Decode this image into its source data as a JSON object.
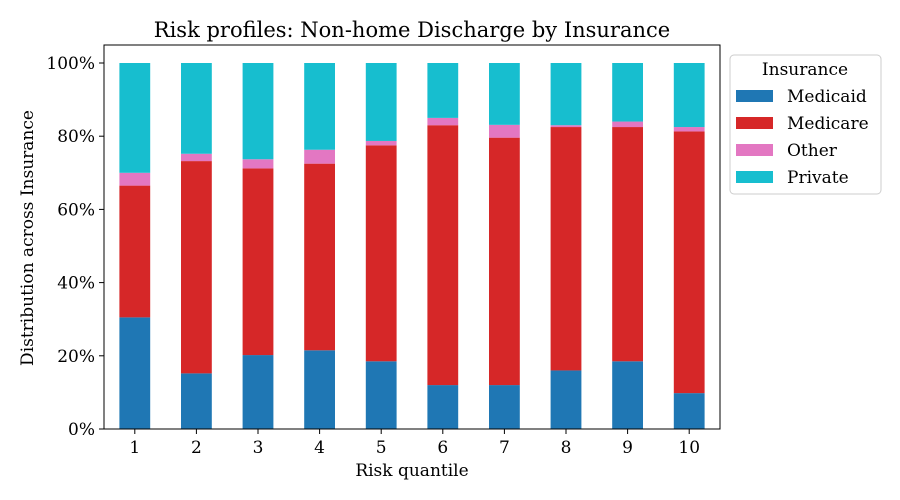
{
  "chart_data": {
    "type": "bar",
    "stacked": true,
    "title": "Risk profiles: Non-home Discharge by Insurance",
    "xlabel": "Risk quantile",
    "ylabel": "Distribution across Insurance",
    "categories": [
      "1",
      "2",
      "3",
      "4",
      "5",
      "6",
      "7",
      "8",
      "9",
      "10"
    ],
    "ylim": [
      0,
      1
    ],
    "yticks": [
      0,
      0.2,
      0.4,
      0.6,
      0.8,
      1.0
    ],
    "ytick_labels": [
      "0%",
      "20%",
      "40%",
      "60%",
      "80%",
      "100%"
    ],
    "grid": false,
    "legend": {
      "title": "Insurance",
      "position": "outside-top-right"
    },
    "series": [
      {
        "name": "Medicaid",
        "color": "#1f77b4",
        "values": [
          0.305,
          0.152,
          0.202,
          0.215,
          0.185,
          0.12,
          0.12,
          0.16,
          0.185,
          0.098
        ]
      },
      {
        "name": "Medicare",
        "color": "#d62728",
        "values": [
          0.36,
          0.58,
          0.51,
          0.51,
          0.59,
          0.71,
          0.676,
          0.665,
          0.64,
          0.715
        ]
      },
      {
        "name": "Other",
        "color": "#e377c2",
        "values": [
          0.035,
          0.02,
          0.025,
          0.038,
          0.012,
          0.02,
          0.035,
          0.005,
          0.015,
          0.012
        ]
      },
      {
        "name": "Private",
        "color": "#17becf",
        "values": [
          0.3,
          0.248,
          0.263,
          0.237,
          0.213,
          0.15,
          0.169,
          0.17,
          0.16,
          0.175
        ]
      }
    ]
  }
}
